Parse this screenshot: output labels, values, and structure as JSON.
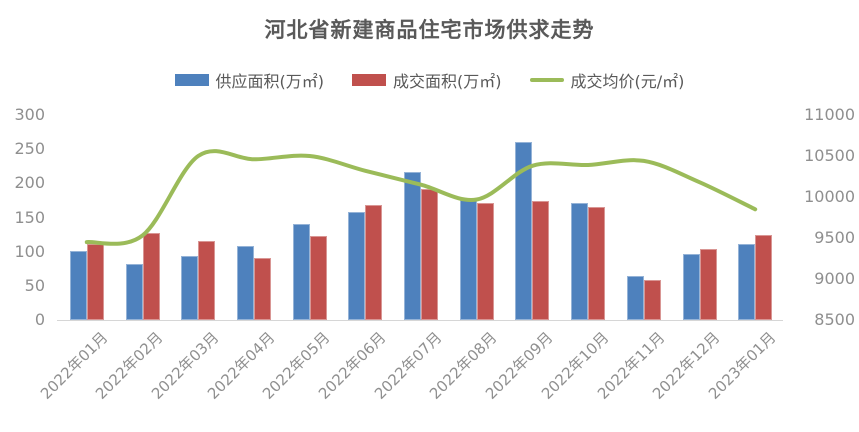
{
  "title": "河北省新建商品住宅市场供求走势",
  "legend": {
    "items": [
      {
        "label": "供应面积(万㎡)",
        "color": "#4E81BD",
        "swatch": "bar"
      },
      {
        "label": "成交面积(万㎡)",
        "color": "#C0504D",
        "swatch": "bar"
      },
      {
        "label": "成交均价(元/㎡)",
        "color": "#9BBB59",
        "swatch": "line"
      }
    ]
  },
  "colors": {
    "supply_bar": "#4E81BD",
    "supply_bar_border": "#95B3D7",
    "deal_bar": "#C0504D",
    "deal_bar_border": "#D99694",
    "price_line": "#9BBB59",
    "axis_text": "#8f8f8f",
    "axis_line": "#d6d6d6",
    "title_text": "#595959"
  },
  "chart_data": {
    "type": "bar",
    "subtype": "bar+line combo, dual axis",
    "title": "河北省新建商品住宅市场供求走势",
    "categories": [
      "2022年01月",
      "2022年02月",
      "2022年03月",
      "2022年04月",
      "2022年05月",
      "2022年06月",
      "2022年07月",
      "2022年08月",
      "2022年09月",
      "2022年10月",
      "2022年11月",
      "2022年12月",
      "2023年01月"
    ],
    "series": [
      {
        "name": "供应面积(万㎡)",
        "type": "bar",
        "axis": "left",
        "color": "#4E81BD",
        "values": [
          101,
          82,
          93,
          109,
          140,
          158,
          217,
          175,
          260,
          172,
          65,
          96,
          112
        ]
      },
      {
        "name": "成交面积(万㎡)",
        "type": "bar",
        "axis": "left",
        "color": "#C0504D",
        "values": [
          111,
          127,
          116,
          91,
          123,
          168,
          192,
          172,
          174,
          165,
          59,
          104,
          125
        ]
      },
      {
        "name": "成交均价(元/㎡)",
        "type": "line",
        "axis": "right",
        "color": "#9BBB59",
        "values": [
          9450,
          9530,
          10500,
          10460,
          10500,
          10320,
          10150,
          9970,
          10380,
          10390,
          10440,
          10180,
          9850
        ]
      }
    ],
    "left_axis": {
      "min": 0,
      "max": 300,
      "step": 50,
      "tick_labels": [
        "300",
        "250",
        "200",
        "150",
        "100",
        "50",
        "0"
      ]
    },
    "right_axis": {
      "min": 8500,
      "max": 11000,
      "step": 500,
      "tick_labels": [
        "11000",
        "10500",
        "10000",
        "9500",
        "9000",
        "8500"
      ]
    },
    "grid": "off",
    "legend_position": "top"
  }
}
